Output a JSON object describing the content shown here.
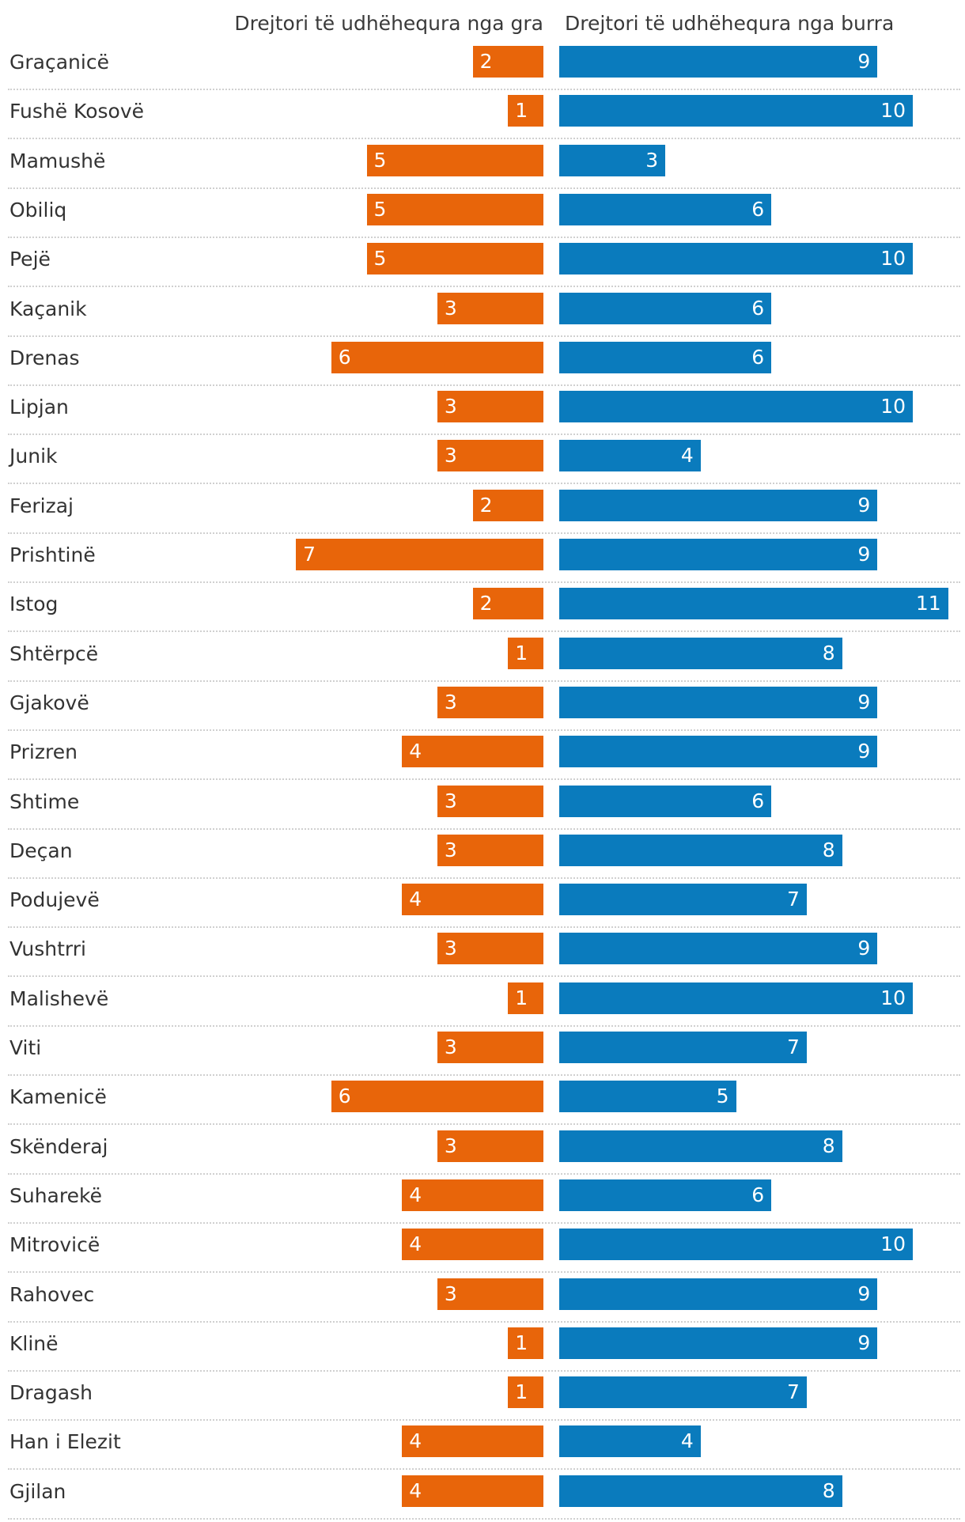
{
  "chart_data": {
    "type": "bar",
    "orientation": "horizontal",
    "title": "",
    "xlabel": "",
    "ylabel": "",
    "xlim": [
      0,
      11
    ],
    "colors": {
      "women": "#e8650a",
      "men": "#0a7bbd"
    },
    "series_labels": {
      "women": "Drejtori të udhëhequra nga gra",
      "men": "Drejtori të udhëhequra nga burra"
    },
    "categories": [
      "Graçanicë",
      "Fushë Kosovë",
      "Mamushë",
      "Obiliq",
      "Pejë",
      "Kaçanik",
      "Drenas",
      "Lipjan",
      "Junik",
      "Ferizaj",
      "Prishtinë",
      "Istog",
      "Shtërpcë",
      "Gjakovë",
      "Prizren",
      "Shtime",
      "Deçan",
      "Podujevë",
      "Vushtrri",
      "Malishevë",
      "Viti",
      "Kamenicë",
      "Skënderaj",
      "Suharekë",
      "Mitrovicë",
      "Rahovec",
      "Klinë",
      "Dragash",
      "Han i Elezit",
      "Gjilan"
    ],
    "series": [
      {
        "name": "Drejtori të udhëhequra nga gra",
        "values": [
          2,
          1,
          5,
          5,
          5,
          3,
          6,
          3,
          3,
          2,
          7,
          2,
          1,
          3,
          4,
          3,
          3,
          4,
          3,
          1,
          3,
          6,
          3,
          4,
          4,
          3,
          1,
          1,
          4,
          4
        ]
      },
      {
        "name": "Drejtori të udhëhequra nga burra",
        "values": [
          9,
          10,
          3,
          6,
          10,
          6,
          6,
          10,
          4,
          9,
          9,
          11,
          8,
          9,
          9,
          6,
          8,
          7,
          9,
          10,
          7,
          5,
          8,
          6,
          10,
          9,
          9,
          7,
          4,
          8
        ]
      }
    ]
  }
}
